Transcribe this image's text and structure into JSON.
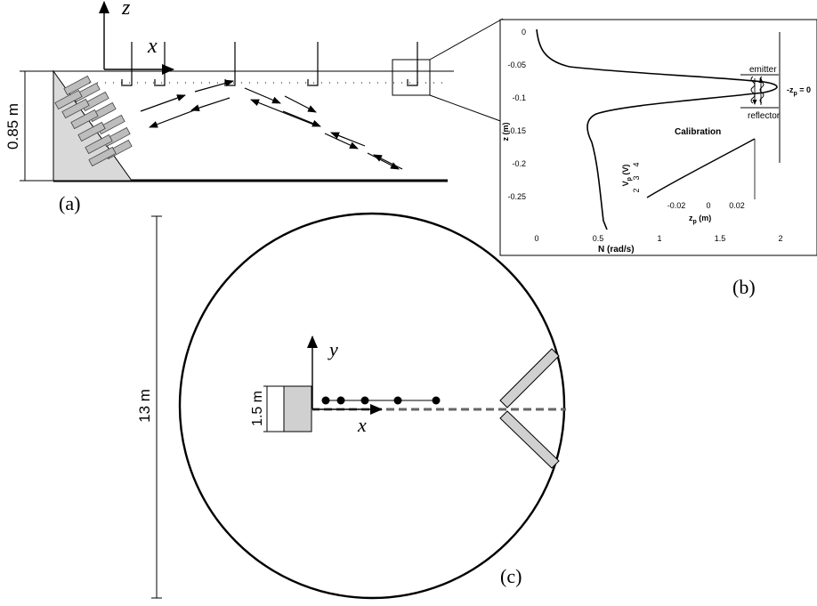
{
  "panel_a": {
    "label": "(a)",
    "depth_label": "0.85 m",
    "axis_x": "x",
    "axis_z": "z"
  },
  "panel_b": {
    "label": "(b)",
    "xlabel": "N (rad/s)",
    "ylabel": "z (m)",
    "xticks": [
      "0",
      "0.5",
      "1",
      "1.5",
      "2"
    ],
    "yticks": [
      "0",
      "-0.05",
      "-0.1",
      "-0.15",
      "-0.2",
      "-0.25"
    ],
    "emitter": "emitter",
    "reflector": "reflector",
    "zp_label": "-z",
    "zp_sub": "p",
    "zp_suffix": " = 0",
    "calibration": "Calibration",
    "inset_ylabel_main": "V",
    "inset_ylabel_sub": "p",
    "inset_ylabel_unit": " (V)",
    "inset_xlabel_main": "z",
    "inset_xlabel_sub": "p",
    "inset_xlabel_unit": " (m)",
    "inset_xticks": [
      "-0.02",
      "0",
      "0.02"
    ],
    "inset_yticks": [
      "4",
      "3",
      "2"
    ]
  },
  "panel_c": {
    "label": "(c)",
    "diameter_label": "13 m",
    "size_label": "1.5 m",
    "axis_x": "x",
    "axis_y": "y"
  }
}
